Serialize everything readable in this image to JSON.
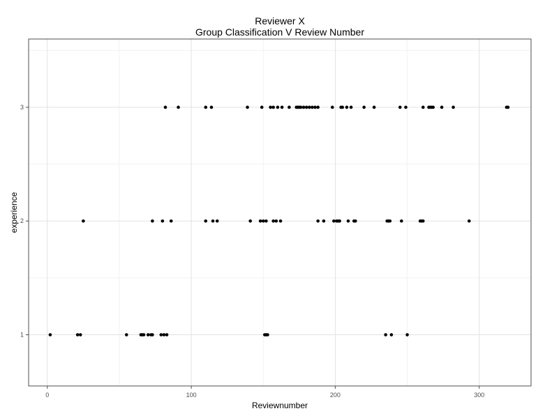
{
  "chart_data": {
    "type": "scatter",
    "title": "Reviewer X",
    "subtitle": "Group Classification V Review Number",
    "xlabel": "Reviewnumber",
    "ylabel": "experience",
    "xlim": [
      -13,
      336
    ],
    "ylim": [
      0.55,
      3.6
    ],
    "x_ticks": [
      "0",
      "100",
      "200",
      "300"
    ],
    "y_ticks": [
      "1",
      "2",
      "3"
    ],
    "grid": true,
    "series": [
      {
        "points": [
          {
            "x": 2,
            "y": 1
          },
          {
            "x": 21,
            "y": 1
          },
          {
            "x": 23,
            "y": 1
          },
          {
            "x": 55,
            "y": 1
          },
          {
            "x": 65,
            "y": 1
          },
          {
            "x": 66,
            "y": 1
          },
          {
            "x": 67,
            "y": 1
          },
          {
            "x": 70,
            "y": 1
          },
          {
            "x": 72,
            "y": 1
          },
          {
            "x": 73,
            "y": 1
          },
          {
            "x": 79,
            "y": 1
          },
          {
            "x": 81,
            "y": 1
          },
          {
            "x": 83,
            "y": 1
          },
          {
            "x": 151,
            "y": 1
          },
          {
            "x": 152,
            "y": 1
          },
          {
            "x": 153,
            "y": 1
          },
          {
            "x": 235,
            "y": 1
          },
          {
            "x": 239,
            "y": 1
          },
          {
            "x": 250,
            "y": 1
          },
          {
            "x": 25,
            "y": 2
          },
          {
            "x": 73,
            "y": 2
          },
          {
            "x": 80,
            "y": 2
          },
          {
            "x": 86,
            "y": 2
          },
          {
            "x": 110,
            "y": 2
          },
          {
            "x": 115,
            "y": 2
          },
          {
            "x": 118,
            "y": 2
          },
          {
            "x": 141,
            "y": 2
          },
          {
            "x": 148,
            "y": 2
          },
          {
            "x": 150,
            "y": 2
          },
          {
            "x": 152,
            "y": 2
          },
          {
            "x": 157,
            "y": 2
          },
          {
            "x": 159,
            "y": 2
          },
          {
            "x": 162,
            "y": 2
          },
          {
            "x": 188,
            "y": 2
          },
          {
            "x": 192,
            "y": 2
          },
          {
            "x": 199,
            "y": 2
          },
          {
            "x": 201,
            "y": 2
          },
          {
            "x": 202,
            "y": 2
          },
          {
            "x": 203,
            "y": 2
          },
          {
            "x": 209,
            "y": 2
          },
          {
            "x": 213,
            "y": 2
          },
          {
            "x": 214,
            "y": 2
          },
          {
            "x": 236,
            "y": 2
          },
          {
            "x": 237,
            "y": 2
          },
          {
            "x": 238,
            "y": 2
          },
          {
            "x": 246,
            "y": 2
          },
          {
            "x": 259,
            "y": 2
          },
          {
            "x": 260,
            "y": 2
          },
          {
            "x": 261,
            "y": 2
          },
          {
            "x": 293,
            "y": 2
          },
          {
            "x": 82,
            "y": 3
          },
          {
            "x": 91,
            "y": 3
          },
          {
            "x": 110,
            "y": 3
          },
          {
            "x": 114,
            "y": 3
          },
          {
            "x": 139,
            "y": 3
          },
          {
            "x": 149,
            "y": 3
          },
          {
            "x": 155,
            "y": 3
          },
          {
            "x": 157,
            "y": 3
          },
          {
            "x": 160,
            "y": 3
          },
          {
            "x": 163,
            "y": 3
          },
          {
            "x": 168,
            "y": 3
          },
          {
            "x": 173,
            "y": 3
          },
          {
            "x": 174,
            "y": 3
          },
          {
            "x": 175,
            "y": 3
          },
          {
            "x": 176,
            "y": 3
          },
          {
            "x": 178,
            "y": 3
          },
          {
            "x": 180,
            "y": 3
          },
          {
            "x": 182,
            "y": 3
          },
          {
            "x": 184,
            "y": 3
          },
          {
            "x": 186,
            "y": 3
          },
          {
            "x": 188,
            "y": 3
          },
          {
            "x": 198,
            "y": 3
          },
          {
            "x": 204,
            "y": 3
          },
          {
            "x": 205,
            "y": 3
          },
          {
            "x": 208,
            "y": 3
          },
          {
            "x": 211,
            "y": 3
          },
          {
            "x": 220,
            "y": 3
          },
          {
            "x": 227,
            "y": 3
          },
          {
            "x": 245,
            "y": 3
          },
          {
            "x": 249,
            "y": 3
          },
          {
            "x": 261,
            "y": 3
          },
          {
            "x": 265,
            "y": 3
          },
          {
            "x": 266,
            "y": 3
          },
          {
            "x": 267,
            "y": 3
          },
          {
            "x": 268,
            "y": 3
          },
          {
            "x": 274,
            "y": 3
          },
          {
            "x": 282,
            "y": 3
          },
          {
            "x": 319,
            "y": 3
          },
          {
            "x": 320,
            "y": 3
          }
        ]
      }
    ]
  }
}
